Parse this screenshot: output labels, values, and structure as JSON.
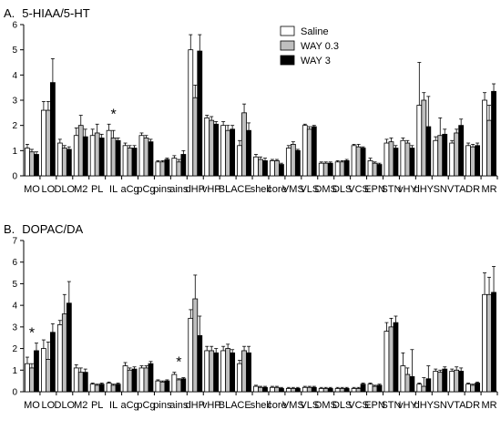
{
  "legend": {
    "entries": [
      {
        "label": "Saline",
        "color": "#ffffff"
      },
      {
        "label": "WAY 0.3",
        "color": "#bfbfbf"
      },
      {
        "label": "WAY 3",
        "color": "#000000"
      }
    ],
    "placement": "top-center"
  },
  "chart_data": [
    {
      "type": "bar",
      "panel_label": "A.",
      "title": "5-HIAA/5-HT",
      "categories": [
        "MO",
        "LO",
        "DLO",
        "M2",
        "PL",
        "IL",
        "aCg",
        "pCg",
        "pins",
        "ains",
        "dHP",
        "vHP",
        "BLA",
        "CE",
        "shell",
        "core",
        "VMS",
        "VLS",
        "DMS",
        "DLS",
        "VCS",
        "EPN",
        "STN",
        "vHY",
        "dHY",
        "SN",
        "VTA",
        "DR",
        "MR"
      ],
      "series": [
        {
          "name": "Saline",
          "color": "#ffffff",
          "values": [
            1.1,
            2.6,
            1.3,
            1.6,
            1.6,
            1.8,
            1.2,
            1.6,
            0.55,
            0.7,
            5.0,
            2.3,
            2.0,
            1.2,
            0.75,
            0.6,
            1.1,
            2.0,
            0.5,
            0.55,
            1.2,
            0.6,
            1.3,
            1.4,
            2.8,
            1.4,
            1.3,
            1.2,
            3.0
          ],
          "errors": [
            0.15,
            0.35,
            0.15,
            0.3,
            0.25,
            0.25,
            0.1,
            0.1,
            0.05,
            0.1,
            0.6,
            0.1,
            0.15,
            0.2,
            0.1,
            0.05,
            0.1,
            0.05,
            0.05,
            0.05,
            0.05,
            0.1,
            0.15,
            0.1,
            1.7,
            0.15,
            0.1,
            0.1,
            0.3
          ]
        },
        {
          "name": "WAY 0.3",
          "color": "#bfbfbf",
          "values": [
            0.95,
            2.6,
            1.1,
            2.0,
            1.7,
            1.5,
            1.1,
            1.5,
            0.55,
            0.55,
            3.1,
            2.2,
            1.8,
            2.5,
            0.65,
            0.6,
            1.25,
            1.85,
            0.5,
            0.55,
            1.15,
            0.5,
            1.35,
            1.3,
            3.0,
            1.6,
            1.7,
            1.15,
            2.2
          ],
          "errors": [
            0.1,
            0.35,
            0.1,
            0.4,
            0.35,
            0.3,
            0.1,
            0.1,
            0.05,
            0.1,
            0.5,
            0.15,
            0.2,
            0.35,
            0.1,
            0.05,
            0.1,
            0.1,
            0.05,
            0.05,
            0.1,
            0.05,
            0.15,
            0.1,
            0.3,
            0.7,
            0.15,
            0.1,
            0.6
          ]
        },
        {
          "name": "WAY 3",
          "color": "#000000",
          "values": [
            0.85,
            3.7,
            1.05,
            1.55,
            1.5,
            1.4,
            1.1,
            1.35,
            0.65,
            0.85,
            4.95,
            2.05,
            1.85,
            1.8,
            0.6,
            0.45,
            1.0,
            1.95,
            0.5,
            0.6,
            1.1,
            0.45,
            1.1,
            1.1,
            1.95,
            1.65,
            2.0,
            1.2,
            3.35
          ],
          "errors": [
            0.1,
            0.95,
            0.1,
            0.3,
            0.15,
            0.1,
            0.1,
            0.1,
            0.05,
            0.15,
            0.65,
            0.1,
            0.15,
            0.3,
            0.1,
            0.05,
            0.05,
            0.05,
            0.05,
            0.05,
            0.05,
            0.05,
            0.1,
            0.1,
            1.2,
            0.2,
            0.25,
            0.1,
            0.3
          ]
        }
      ],
      "annotations": [
        {
          "category": "IL",
          "text": "*"
        }
      ],
      "ylim": [
        0,
        6
      ],
      "yticks": [
        0,
        1,
        2,
        3,
        4,
        5,
        6
      ],
      "xlabel": "",
      "ylabel": "",
      "grid": false
    },
    {
      "type": "bar",
      "panel_label": "B.",
      "title": "DOPAC/DA",
      "categories": [
        "MO",
        "LO",
        "DLO",
        "M2",
        "PL",
        "IL",
        "aCg",
        "pCg",
        "pins",
        "ains",
        "dHP",
        "vHP",
        "BLA",
        "CE",
        "shell",
        "core",
        "VMS",
        "VLS",
        "DMS",
        "DLS",
        "VCS",
        "EPN",
        "STN",
        "vHY",
        "dHY",
        "SN",
        "VTA",
        "DR",
        "MR"
      ],
      "series": [
        {
          "name": "Saline",
          "color": "#ffffff",
          "values": [
            1.3,
            2.0,
            3.1,
            1.1,
            0.35,
            0.4,
            1.2,
            1.1,
            0.5,
            0.8,
            3.4,
            1.9,
            1.9,
            1.3,
            0.25,
            0.2,
            0.15,
            0.2,
            0.15,
            0.15,
            0.15,
            0.35,
            2.8,
            1.2,
            0.35,
            0.95,
            0.95,
            0.35,
            4.5
          ],
          "errors": [
            0.3,
            0.4,
            0.2,
            0.15,
            0.05,
            0.05,
            0.15,
            0.1,
            0.05,
            0.1,
            0.4,
            0.2,
            0.2,
            0.15,
            0.05,
            0.05,
            0.05,
            0.05,
            0.05,
            0.05,
            0.05,
            0.05,
            0.4,
            0.6,
            0.05,
            0.1,
            0.1,
            0.05,
            1.0
          ]
        },
        {
          "name": "WAY 0.3",
          "color": "#bfbfbf",
          "values": [
            1.1,
            1.5,
            3.6,
            0.9,
            0.3,
            0.3,
            1.0,
            1.1,
            0.45,
            0.55,
            4.3,
            1.9,
            2.0,
            1.9,
            0.2,
            0.2,
            0.15,
            0.2,
            0.15,
            0.15,
            0.15,
            0.25,
            3.0,
            0.8,
            0.25,
            0.9,
            1.0,
            0.3,
            4.5
          ],
          "errors": [
            0.2,
            0.8,
            0.9,
            0.2,
            0.05,
            0.05,
            0.1,
            0.1,
            0.05,
            0.05,
            1.1,
            0.2,
            0.2,
            0.2,
            0.05,
            0.05,
            0.05,
            0.05,
            0.05,
            0.05,
            0.05,
            0.05,
            0.4,
            0.3,
            0.4,
            0.1,
            0.15,
            0.05,
            0.8
          ]
        },
        {
          "name": "WAY 3",
          "color": "#000000",
          "values": [
            1.9,
            2.75,
            4.1,
            0.9,
            0.35,
            0.35,
            1.05,
            1.3,
            0.5,
            0.6,
            2.6,
            1.8,
            1.8,
            1.8,
            0.2,
            0.15,
            0.15,
            0.2,
            0.15,
            0.15,
            0.35,
            0.3,
            3.2,
            0.7,
            0.6,
            1.05,
            0.95,
            0.4,
            4.6
          ],
          "errors": [
            0.35,
            0.4,
            1.0,
            0.15,
            0.05,
            0.05,
            0.1,
            0.1,
            0.05,
            0.05,
            0.9,
            0.2,
            0.15,
            0.3,
            0.05,
            0.05,
            0.05,
            0.05,
            0.05,
            0.05,
            0.05,
            0.05,
            0.3,
            1.25,
            0.6,
            0.1,
            0.15,
            0.05,
            1.2
          ]
        }
      ],
      "annotations": [
        {
          "category": "MO",
          "text": "*"
        },
        {
          "category": "ains",
          "text": "*"
        }
      ],
      "ylim": [
        0,
        7
      ],
      "yticks": [
        0,
        1,
        2,
        3,
        4,
        5,
        6,
        7
      ],
      "xlabel": "",
      "ylabel": "",
      "grid": false
    }
  ]
}
